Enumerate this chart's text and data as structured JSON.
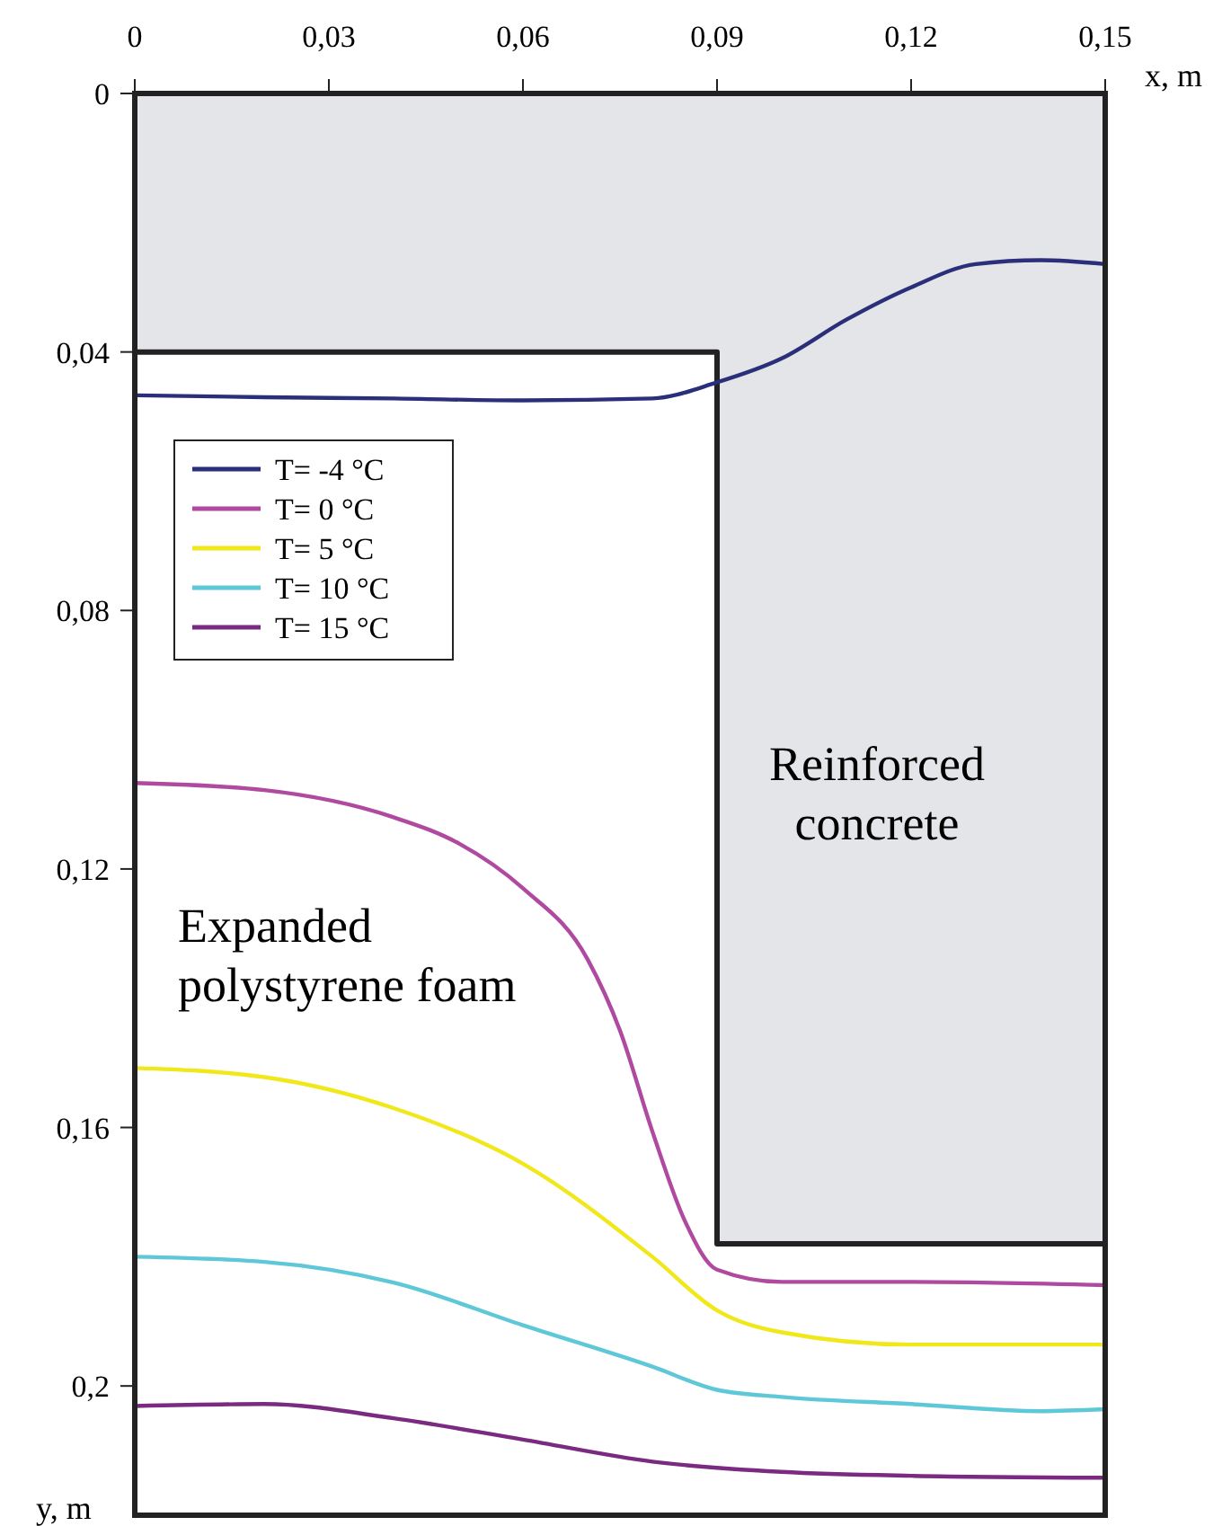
{
  "chart_data": {
    "type": "line",
    "xlabel": "x, m",
    "ylabel": "y, m",
    "xlim": [
      0,
      0.15
    ],
    "ylim": [
      0.22,
      0
    ],
    "xticks": [
      0,
      {
        "value": 0.03,
        "label": "0,03"
      },
      {
        "value": 0.06,
        "label": "0,06"
      },
      {
        "value": 0.09,
        "label": "0,09"
      },
      {
        "value": 0.12,
        "label": "0,12"
      },
      {
        "value": 0.15,
        "label": "0,15"
      }
    ],
    "yticks": [
      0,
      {
        "value": 0.04,
        "label": "0,04"
      },
      {
        "value": 0.08,
        "label": "0,08"
      },
      {
        "value": 0.12,
        "label": "0,12"
      },
      {
        "value": 0.16,
        "label": "0,16"
      },
      {
        "value": 0.2,
        "label": "0,2"
      }
    ],
    "grid": false,
    "legend": "top left",
    "marker": "none",
    "line_style": "solid",
    "series": [
      {
        "type": "area",
        "color": "#e4e5e8",
        "x": [
          0,
          0.09,
          0.09,
          0.15
        ],
        "values": [
          0.04,
          0.04,
          0.178,
          0.178
        ]
      },
      {
        "name": "T= -4 °C",
        "color": "#2b2f7a",
        "x": [
          0,
          0.02,
          0.04,
          0.06,
          0.08,
          0.09,
          0.1,
          0.11,
          0.12,
          0.13,
          0.14,
          0.15
        ],
        "values": [
          0.0467,
          0.047,
          0.0472,
          0.0475,
          0.0472,
          0.0447,
          0.041,
          0.035,
          0.03,
          0.0264,
          0.0258,
          0.0264
        ]
      },
      {
        "name": "T= 0 °C",
        "color": "#b04aa0",
        "x": [
          0,
          0.02,
          0.04,
          0.05,
          0.06,
          0.07,
          0.075,
          0.08,
          0.085,
          0.09,
          0.1,
          0.12,
          0.15
        ],
        "values": [
          0.1067,
          0.1078,
          0.112,
          0.116,
          0.123,
          0.134,
          0.145,
          0.1606,
          0.1744,
          0.182,
          0.1839,
          0.1839,
          0.1844
        ]
      },
      {
        "name": "T= 5 °C",
        "color": "#f0e81a",
        "x": [
          0,
          0.02,
          0.04,
          0.06,
          0.08,
          0.09,
          0.1,
          0.12,
          0.15
        ],
        "values": [
          0.1508,
          0.1522,
          0.157,
          0.1656,
          0.18,
          0.1883,
          0.1917,
          0.1936,
          0.1936
        ]
      },
      {
        "name": "T= 10 °C",
        "color": "#5ec8d8",
        "x": [
          0,
          0.02,
          0.04,
          0.06,
          0.08,
          0.09,
          0.1,
          0.12,
          0.14,
          0.15
        ],
        "values": [
          0.18,
          0.1808,
          0.184,
          0.1906,
          0.197,
          0.2006,
          0.2017,
          0.2028,
          0.2039,
          0.2036
        ]
      },
      {
        "name": "T= 15 °C",
        "color": "#7a2a80",
        "x": [
          0,
          0.02,
          0.04,
          0.06,
          0.08,
          0.1,
          0.12,
          0.15
        ],
        "values": [
          0.2031,
          0.2028,
          0.205,
          0.2083,
          0.2117,
          0.2133,
          0.2139,
          0.2142
        ]
      }
    ],
    "annotations": [
      "Reinforced\nconcrete",
      "Expanded\npolystyrene foam"
    ]
  }
}
